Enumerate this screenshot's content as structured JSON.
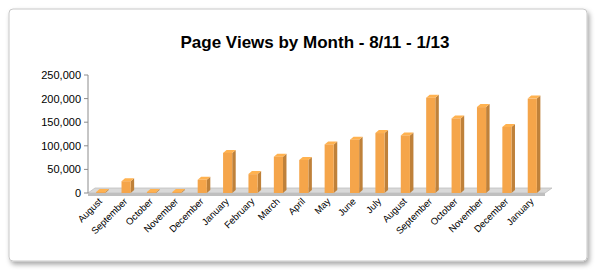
{
  "chart_data": {
    "type": "bar",
    "title": "Page Views by Month - 8/11 - 1/13",
    "categories": [
      "August",
      "September",
      "October",
      "November",
      "December",
      "January",
      "February",
      "March",
      "April",
      "May",
      "June",
      "July",
      "August",
      "September",
      "October",
      "November",
      "December",
      "January"
    ],
    "values": [
      2000,
      25000,
      2000,
      2000,
      28000,
      85000,
      40000,
      77000,
      70000,
      103000,
      113000,
      127000,
      122000,
      202000,
      158000,
      182000,
      140000,
      200000
    ],
    "color": "#f5a54a",
    "ylim": [
      0,
      250000
    ],
    "yticks": [
      0,
      {
        "value": 50000,
        "label": "50,000"
      },
      {
        "value": 100000,
        "label": "100,000"
      },
      {
        "value": 150000,
        "label": "150,000"
      },
      {
        "value": 200000,
        "label": "200,000"
      },
      {
        "value": 250000,
        "label": "250,000"
      }
    ],
    "grid": false
  }
}
